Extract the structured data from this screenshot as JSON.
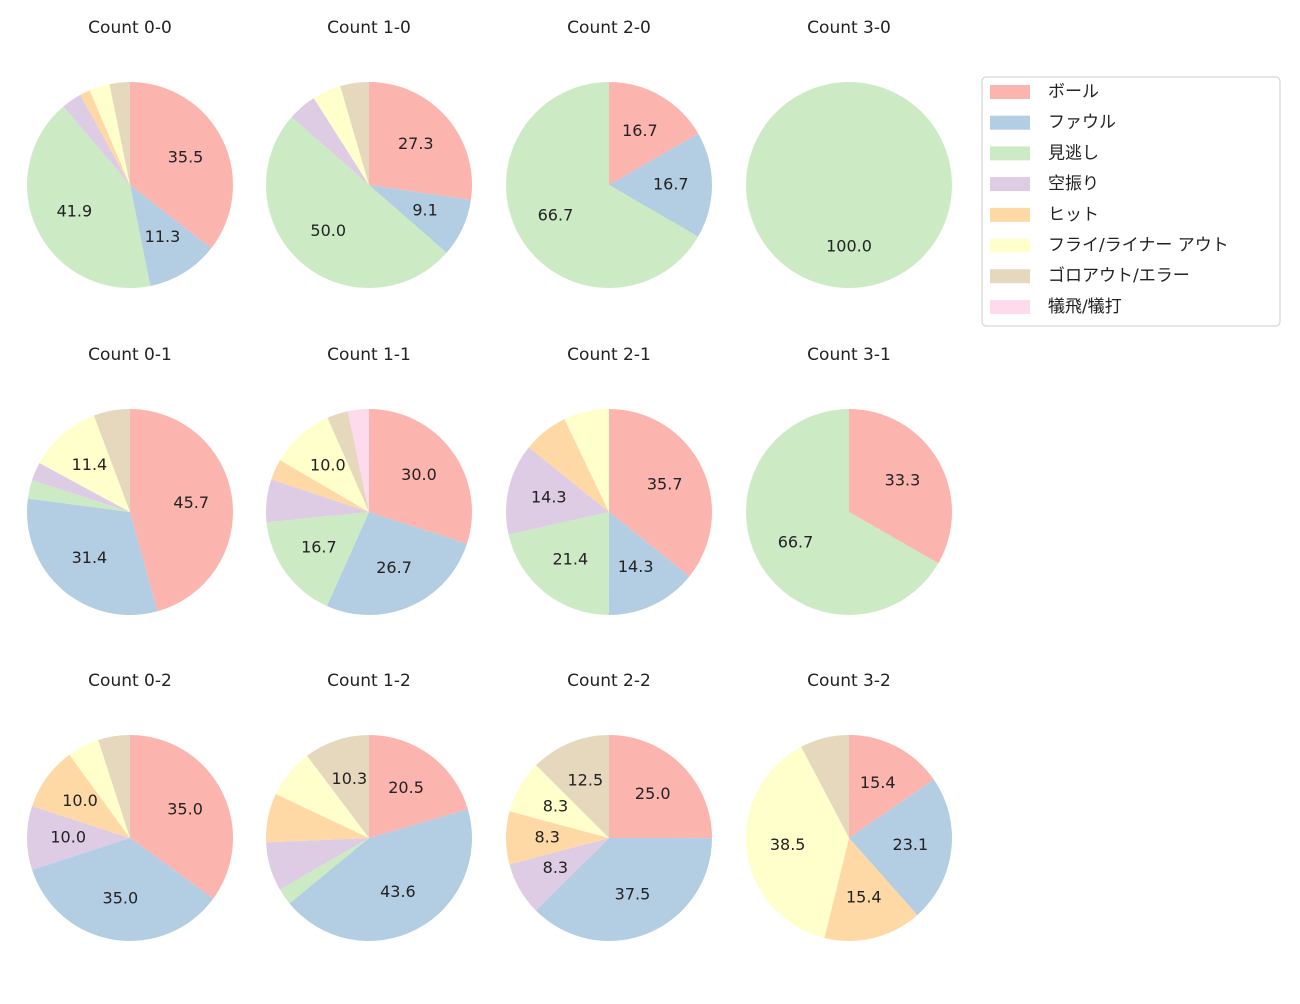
{
  "legend": {
    "categories": [
      "ボール",
      "ファウル",
      "見逃し",
      "空振り",
      "ヒット",
      "フライ/ライナー アウト",
      "ゴロアウト/エラー",
      "犠飛/犠打"
    ],
    "colors": [
      "#fbb4ae",
      "#b3cde3",
      "#ccebc5",
      "#decbe4",
      "#fed9a6",
      "#ffffcc",
      "#e5d8bd",
      "#fddaec"
    ]
  },
  "chart_data": [
    {
      "type": "pie",
      "title": "Count 0-0",
      "values": [
        35.5,
        11.3,
        41.9,
        3.2,
        1.6,
        3.2,
        3.2,
        null
      ],
      "value_labels": [
        "35.5",
        "11.3",
        "41.9",
        null,
        null,
        null,
        null,
        null
      ]
    },
    {
      "type": "pie",
      "title": "Count 1-0",
      "values": [
        27.3,
        9.1,
        50.0,
        4.5,
        null,
        4.5,
        4.5,
        null
      ],
      "value_labels": [
        "27.3",
        "9.1",
        "50.0",
        null,
        null,
        null,
        null,
        null
      ]
    },
    {
      "type": "pie",
      "title": "Count 2-0",
      "values": [
        16.7,
        16.7,
        66.7,
        null,
        null,
        null,
        null,
        null
      ],
      "value_labels": [
        "16.7",
        "16.7",
        "66.7",
        null,
        null,
        null,
        null,
        null
      ]
    },
    {
      "type": "pie",
      "title": "Count 3-0",
      "values": [
        null,
        null,
        100,
        null,
        null,
        null,
        null,
        null
      ],
      "value_labels": [
        null,
        null,
        "100.0",
        null,
        null,
        null,
        null,
        null
      ]
    },
    {
      "type": "pie",
      "title": "Count 0-1",
      "values": [
        45.7,
        31.4,
        2.9,
        2.9,
        null,
        11.4,
        5.7,
        null
      ],
      "value_labels": [
        "45.7",
        "31.4",
        null,
        null,
        null,
        "11.4",
        null,
        null
      ]
    },
    {
      "type": "pie",
      "title": "Count 1-1",
      "values": [
        30.0,
        26.7,
        16.7,
        6.7,
        3.3,
        10.0,
        3.3,
        3.3
      ],
      "value_labels": [
        "30.0",
        "26.7",
        "16.7",
        null,
        null,
        "10.0",
        null,
        null
      ]
    },
    {
      "type": "pie",
      "title": "Count 2-1",
      "values": [
        35.7,
        14.3,
        21.4,
        14.3,
        7.1,
        7.1,
        null,
        null
      ],
      "value_labels": [
        "35.7",
        "14.3",
        "21.4",
        "14.3",
        null,
        null,
        null,
        null
      ]
    },
    {
      "type": "pie",
      "title": "Count 3-1",
      "values": [
        33.3,
        null,
        66.7,
        null,
        null,
        null,
        null,
        null
      ],
      "value_labels": [
        "33.3",
        null,
        "66.7",
        null,
        null,
        null,
        null,
        null
      ]
    },
    {
      "type": "pie",
      "title": "Count 0-2",
      "values": [
        35.0,
        35.0,
        null,
        10.0,
        10.0,
        5.0,
        5.0,
        null
      ],
      "value_labels": [
        "35.0",
        "35.0",
        null,
        "10.0",
        "10.0",
        null,
        null,
        null
      ]
    },
    {
      "type": "pie",
      "title": "Count 1-2",
      "values": [
        20.5,
        43.6,
        2.6,
        7.7,
        7.7,
        7.7,
        10.3,
        null
      ],
      "value_labels": [
        "20.5",
        "43.6",
        null,
        null,
        null,
        null,
        "10.3",
        null
      ]
    },
    {
      "type": "pie",
      "title": "Count 2-2",
      "values": [
        25.0,
        37.5,
        null,
        8.3,
        8.3,
        8.3,
        12.5,
        null
      ],
      "value_labels": [
        "25.0",
        "37.5",
        null,
        "8.3",
        "8.3",
        "8.3",
        "12.5",
        null
      ]
    },
    {
      "type": "pie",
      "title": "Count 3-2",
      "values": [
        15.4,
        23.1,
        null,
        null,
        15.4,
        38.5,
        7.7,
        null
      ],
      "value_labels": [
        "15.4",
        "23.1",
        null,
        null,
        "15.4",
        "38.5",
        null,
        null
      ]
    }
  ]
}
